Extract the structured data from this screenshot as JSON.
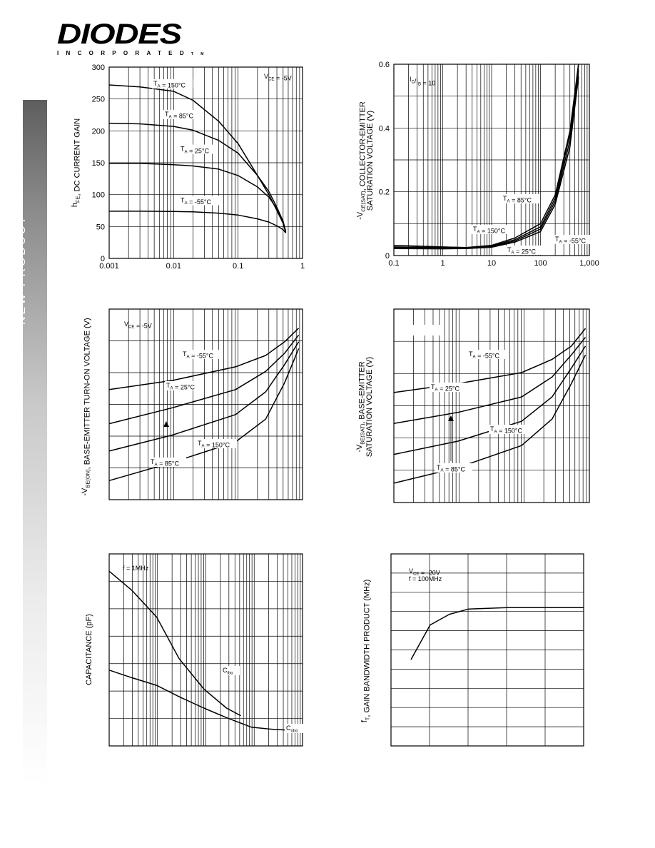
{
  "header": {
    "logo_text": "DIODES",
    "logo_subtext": "INCORPORATED",
    "logo_tm": "TM"
  },
  "sidebar": {
    "label": "NEW PRODUCT"
  },
  "chart_data": [
    {
      "type": "line",
      "xscale": "log",
      "xlim": [
        0.001,
        1
      ],
      "ylim": [
        0,
        300
      ],
      "xticks": [
        "0.001",
        "0.01",
        "0.1",
        "1"
      ],
      "yticks": [
        "0",
        "50",
        "100",
        "150",
        "200",
        "250",
        "300"
      ],
      "ylabel": "h_FE, DC CURRENT GAIN",
      "annotations": [
        "V_CE = -5V"
      ],
      "series": [
        {
          "name": "T_A = 150°C",
          "x": [
            0.001,
            0.003,
            0.01,
            0.02,
            0.05,
            0.1,
            0.2,
            0.3,
            0.4,
            0.5,
            0.55
          ],
          "y": [
            272,
            269,
            262,
            248,
            215,
            180,
            130,
            100,
            75,
            55,
            40
          ]
        },
        {
          "name": "T_A = 85°C",
          "x": [
            0.001,
            0.003,
            0.01,
            0.02,
            0.05,
            0.1,
            0.2,
            0.3,
            0.4,
            0.5,
            0.55
          ],
          "y": [
            212,
            211,
            207,
            201,
            185,
            165,
            130,
            105,
            80,
            58,
            42
          ]
        },
        {
          "name": "T_A = 25°C",
          "x": [
            0.001,
            0.003,
            0.01,
            0.02,
            0.05,
            0.1,
            0.2,
            0.3,
            0.4,
            0.5,
            0.55
          ],
          "y": [
            149,
            149,
            147,
            145,
            140,
            130,
            112,
            96,
            78,
            58,
            42
          ]
        },
        {
          "name": "T_A = -55°C",
          "x": [
            0.001,
            0.003,
            0.01,
            0.02,
            0.05,
            0.1,
            0.2,
            0.3,
            0.4,
            0.5,
            0.55
          ],
          "y": [
            74,
            74,
            73.5,
            73,
            71,
            68,
            62,
            57,
            51,
            45,
            40
          ]
        }
      ]
    },
    {
      "type": "line",
      "xscale": "log",
      "xlim": [
        0.1,
        1000
      ],
      "ylim": [
        0,
        0.6
      ],
      "xticks": [
        "0.1",
        "1",
        "10",
        "100",
        "1,000"
      ],
      "yticks": [
        "0",
        "0.2",
        "0.4",
        "0.6"
      ],
      "ylabel": "-V_CE(SAT), COLLECTOR-EMITTER SATURATION VOLTAGE (V)",
      "annotations": [
        "I_C/I_B = 10"
      ],
      "series": [
        {
          "name": "T_A = 85°C",
          "x": [
            0.1,
            1,
            3,
            10,
            30,
            100,
            200,
            400,
            600
          ],
          "y": [
            0.027,
            0.025,
            0.024,
            0.03,
            0.05,
            0.09,
            0.18,
            0.38,
            0.6
          ]
        },
        {
          "name": "T_A = 150°C",
          "x": [
            0.1,
            1,
            3,
            10,
            30,
            100,
            200,
            400,
            600
          ],
          "y": [
            0.032,
            0.027,
            0.025,
            0.032,
            0.055,
            0.1,
            0.19,
            0.39,
            0.6
          ]
        },
        {
          "name": "T_A = 25°C",
          "x": [
            0.1,
            1,
            3,
            10,
            30,
            100,
            200,
            400,
            600
          ],
          "y": [
            0.024,
            0.023,
            0.023,
            0.028,
            0.046,
            0.083,
            0.17,
            0.36,
            0.58
          ]
        },
        {
          "name": "T_A = -55°C",
          "x": [
            0.1,
            1,
            3,
            10,
            30,
            100,
            200,
            400,
            600
          ],
          "y": [
            0.022,
            0.021,
            0.022,
            0.026,
            0.042,
            0.075,
            0.16,
            0.34,
            0.56
          ]
        }
      ]
    },
    {
      "type": "line",
      "xscale": "log",
      "ylabel": "-V_BE(ON), BASE-EMITTER TURN-ON VOLTAGE (V)",
      "annotations": [
        "V_CE = -5V"
      ],
      "series": [
        {
          "name": "T_A = -55°C",
          "x": [
            0.0001,
            0.001,
            0.01,
            0.03,
            0.06,
            0.1
          ],
          "y": [
            0.87,
            0.91,
            0.97,
            1.02,
            1.08,
            1.14
          ]
        },
        {
          "name": "T_A = 25°C",
          "x": [
            0.0001,
            0.001,
            0.01,
            0.03,
            0.06,
            0.1
          ],
          "y": [
            0.72,
            0.79,
            0.87,
            0.95,
            1.03,
            1.11
          ]
        },
        {
          "name": "T_A = 85°C",
          "x": [
            0.0001,
            0.001,
            0.01,
            0.03,
            0.06,
            0.1
          ],
          "y": [
            0.6,
            0.67,
            0.76,
            0.86,
            0.98,
            1.08
          ]
        },
        {
          "name": "T_A = 150°C",
          "x": [
            0.0001,
            0.001,
            0.01,
            0.03,
            0.06,
            0.1
          ],
          "y": [
            0.47,
            0.55,
            0.64,
            0.74,
            0.9,
            1.05
          ]
        }
      ]
    },
    {
      "type": "line",
      "xscale": "log",
      "ylabel": "-V_BE(SAT), BASE-EMITTER SATURATION VOLTAGE (V)",
      "annotations": [],
      "series": [
        {
          "name": "T_A = -55°C",
          "x": [
            0.0001,
            0.001,
            0.01,
            0.03,
            0.06,
            0.1
          ],
          "y": [
            0.87,
            0.91,
            0.96,
            1.02,
            1.08,
            1.16
          ]
        },
        {
          "name": "T_A = 25°C",
          "x": [
            0.0001,
            0.001,
            0.01,
            0.03,
            0.06,
            0.1
          ],
          "y": [
            0.73,
            0.78,
            0.85,
            0.94,
            1.04,
            1.12
          ]
        },
        {
          "name": "T_A = 85°C",
          "x": [
            0.0001,
            0.001,
            0.01,
            0.03,
            0.06,
            0.1
          ],
          "y": [
            0.59,
            0.65,
            0.74,
            0.85,
            0.98,
            1.08
          ]
        },
        {
          "name": "T_A = 150°C",
          "x": [
            0.0001,
            0.001,
            0.01,
            0.03,
            0.06,
            0.1
          ],
          "y": [
            0.46,
            0.53,
            0.63,
            0.75,
            0.91,
            1.04
          ]
        }
      ]
    },
    {
      "type": "line",
      "xscale": "log",
      "ylabel": "CAPACITANCE (pF)",
      "annotations": [
        "f = 1MHz"
      ],
      "series": [
        {
          "name": "C_ibo",
          "x": [
            0.1,
            0.3,
            1,
            3,
            10,
            30,
            60
          ],
          "y": [
            45,
            40,
            33,
            22,
            14,
            9,
            7
          ]
        },
        {
          "name": "C_obo",
          "x": [
            0.1,
            0.3,
            1,
            3,
            10,
            30,
            100,
            300,
            1000
          ],
          "y": [
            19,
            17,
            15,
            12,
            9,
            6.5,
            4,
            3.4,
            3.1
          ]
        }
      ]
    },
    {
      "type": "line",
      "xscale": "linear",
      "ylabel": "f_T, GAIN BANDWIDTH PRODUCT (MHz)",
      "annotations": [
        "V_CE = -20V",
        "f = 100MHz"
      ],
      "series": [
        {
          "name": "f_T",
          "x": [
            0.5,
            1,
            1.5,
            2,
            3,
            4,
            5
          ],
          "y": [
            0.55,
            0.68,
            0.72,
            0.74,
            0.745,
            0.745,
            0.745
          ]
        }
      ]
    }
  ]
}
